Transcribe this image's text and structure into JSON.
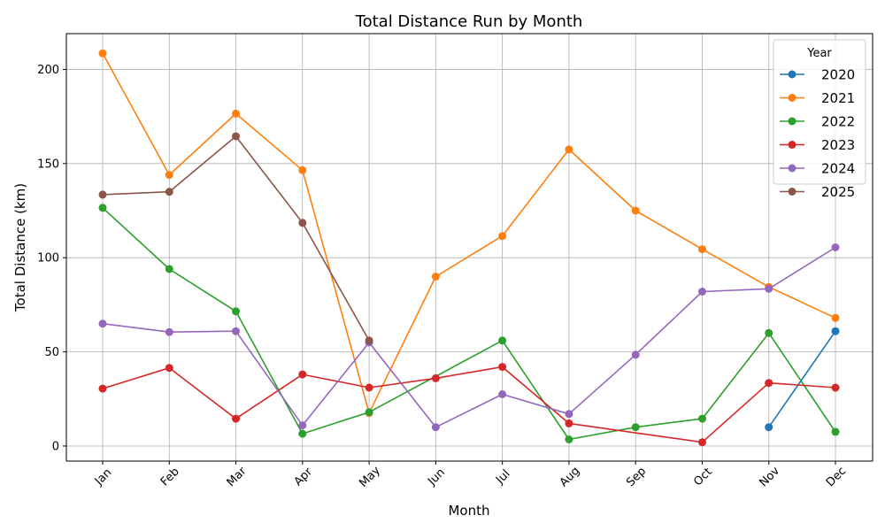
{
  "chart_data": {
    "type": "line",
    "title": "Total Distance Run by Month",
    "xlabel": "Month",
    "ylabel": "Total Distance (km)",
    "categories": [
      "Jan",
      "Feb",
      "Mar",
      "Apr",
      "May",
      "Jun",
      "Jul",
      "Aug",
      "Sep",
      "Oct",
      "Nov",
      "Dec"
    ],
    "ylim": [
      -8,
      219
    ],
    "yticks": [
      0,
      50,
      100,
      150,
      200
    ],
    "grid": true,
    "legend": {
      "title": "Year",
      "placement": "top-right"
    },
    "series": [
      {
        "name": "2020",
        "color": "#1f77b4",
        "values": [
          null,
          null,
          null,
          null,
          null,
          null,
          null,
          null,
          null,
          null,
          10,
          61
        ]
      },
      {
        "name": "2021",
        "color": "#ff7f0e",
        "values": [
          208.5,
          144,
          176.5,
          146.5,
          17.5,
          90,
          111.5,
          157.5,
          125,
          104.5,
          84.5,
          68
        ]
      },
      {
        "name": "2022",
        "color": "#2ca02c",
        "values": [
          126.5,
          94,
          71.5,
          6.5,
          18,
          null,
          56,
          3.5,
          10,
          14.5,
          60,
          7.5
        ]
      },
      {
        "name": "2023",
        "color": "#d62728",
        "values": [
          30.5,
          41.5,
          14.5,
          38,
          31,
          36,
          42,
          12,
          null,
          2,
          33.5,
          31
        ]
      },
      {
        "name": "2024",
        "color": "#9467bd",
        "values": [
          65,
          60.5,
          61,
          11,
          55,
          10,
          27.5,
          17,
          48.5,
          82,
          83.5,
          105.5
        ]
      },
      {
        "name": "2025",
        "color": "#8c564b",
        "values": [
          133.5,
          135,
          164.5,
          118.5,
          56,
          null,
          null,
          null,
          null,
          null,
          null,
          null
        ]
      }
    ]
  }
}
